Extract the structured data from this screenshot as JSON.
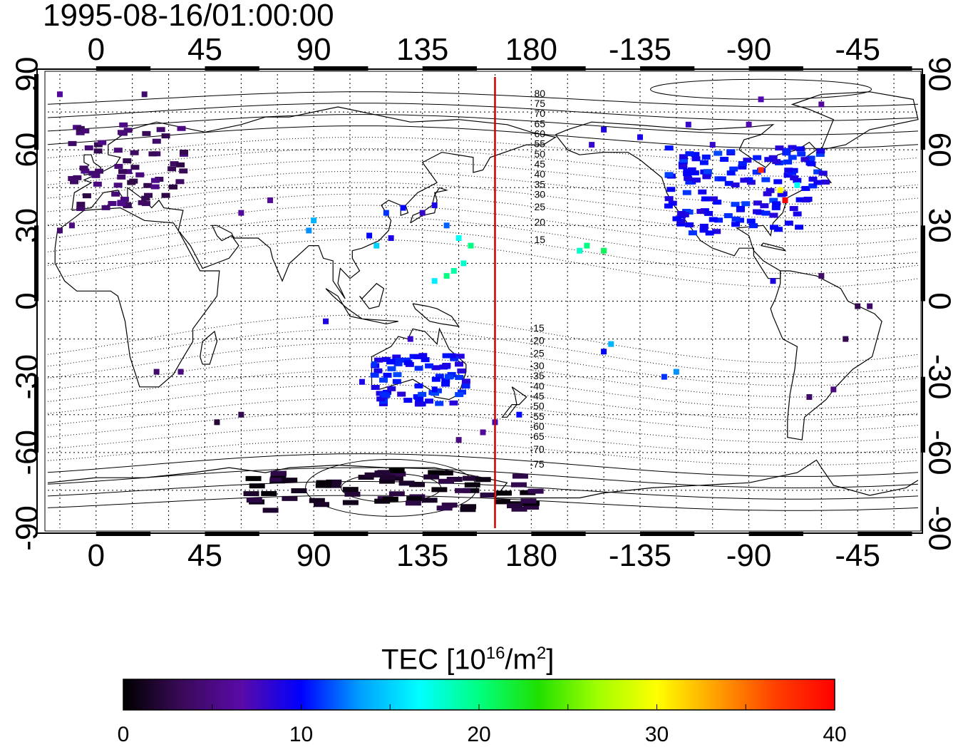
{
  "title": "1995-08-16/01:00:00",
  "map": {
    "lon_ticks": [
      0,
      45,
      90,
      135,
      180,
      225,
      270,
      315
    ],
    "lon_tick_labels": [
      "0",
      "45",
      "90",
      "135",
      "180",
      "-135",
      "-90",
      "-45"
    ],
    "lat_ticks": [
      90,
      60,
      30,
      0,
      -30,
      -60,
      -90
    ],
    "lat_tick_labels": [
      "90",
      "60",
      "30",
      "0",
      "-30",
      "-60",
      "-90"
    ],
    "lon_range": [
      -20,
      340
    ],
    "lat_range": [
      -90,
      90
    ],
    "red_line_lon": 165,
    "contour_labels_north": [
      "80",
      "75",
      "70",
      "65",
      "60",
      "55",
      "50",
      "45",
      "40",
      "35",
      "30",
      "25",
      "20",
      "15"
    ],
    "contour_labels_south": [
      "-15",
      "-20",
      "-25",
      "-30",
      "-35",
      "-40",
      "-45",
      "-50",
      "-55",
      "-60",
      "-65",
      "-70",
      "-75"
    ]
  },
  "colorbar": {
    "title_prefix": "TEC  [10",
    "title_sup1": "16",
    "title_mid": "/m",
    "title_sup2": "2",
    "title_suffix": "]",
    "min": 0,
    "max": 40,
    "tick_values": [
      0,
      10,
      20,
      30,
      40
    ],
    "tick_labels": [
      "0",
      "10",
      "20",
      "30",
      "40"
    ],
    "stops": [
      "#000000",
      "#3a0a5a",
      "#5a0aa8",
      "#0000ff",
      "#00a0ff",
      "#00ffff",
      "#00ff80",
      "#20e000",
      "#a0ff00",
      "#ffff00",
      "#ffa000",
      "#ff4000",
      "#ff0000"
    ]
  },
  "tec_regions": [
    {
      "name": "europe",
      "lon": [
        -12,
        35
      ],
      "lat": [
        37,
        72
      ],
      "value": 4
    },
    {
      "name": "usa",
      "lon": [
        235,
        295
      ],
      "lat": [
        28,
        50
      ],
      "value": 10
    },
    {
      "name": "canada",
      "lon": [
        235,
        300
      ],
      "lat": [
        48,
        62
      ],
      "value": 10
    },
    {
      "name": "antarctica",
      "lon": [
        60,
        180
      ],
      "lat": [
        -82,
        -66
      ],
      "value": 1.5
    },
    {
      "name": "australia",
      "lon": [
        113,
        152
      ],
      "lat": [
        -40,
        -20
      ],
      "value": 10
    }
  ],
  "tec_points": [
    {
      "lon": 25,
      "lat": -28,
      "value": 4
    },
    {
      "lon": 35,
      "lat": -28,
      "value": 5
    },
    {
      "lon": -15,
      "lat": 28,
      "value": 4
    },
    {
      "lon": -10,
      "lat": 30,
      "value": 5
    },
    {
      "lon": 60,
      "lat": 35,
      "value": 6
    },
    {
      "lon": 72,
      "lat": 40,
      "value": 6
    },
    {
      "lon": 88,
      "lat": 28,
      "value": 13
    },
    {
      "lon": 90,
      "lat": 32,
      "value": 14
    },
    {
      "lon": 95,
      "lat": -8,
      "value": 9
    },
    {
      "lon": 113,
      "lat": 26,
      "value": 10
    },
    {
      "lon": 116,
      "lat": 22,
      "value": 15
    },
    {
      "lon": 120,
      "lat": 35,
      "value": 11
    },
    {
      "lon": 122,
      "lat": 25,
      "value": 9
    },
    {
      "lon": 127,
      "lat": 37,
      "value": 10
    },
    {
      "lon": 135,
      "lat": 35,
      "value": 8
    },
    {
      "lon": 140,
      "lat": 38,
      "value": 9
    },
    {
      "lon": 145,
      "lat": 30,
      "value": 12
    },
    {
      "lon": 150,
      "lat": 25,
      "value": 17
    },
    {
      "lon": 155,
      "lat": 22,
      "value": 20
    },
    {
      "lon": 152,
      "lat": 15,
      "value": 18
    },
    {
      "lon": 148,
      "lat": 12,
      "value": 19
    },
    {
      "lon": 145,
      "lat": 10,
      "value": 20
    },
    {
      "lon": 140,
      "lat": 8,
      "value": 16
    },
    {
      "lon": 203,
      "lat": 22,
      "value": 20
    },
    {
      "lon": 200,
      "lat": 20,
      "value": 18
    },
    {
      "lon": 210,
      "lat": 20,
      "value": 21
    },
    {
      "lon": 213,
      "lat": -17,
      "value": 14
    },
    {
      "lon": 210,
      "lat": -20,
      "value": 10
    },
    {
      "lon": 235,
      "lat": -30,
      "value": 11
    },
    {
      "lon": 240,
      "lat": -28,
      "value": 13
    },
    {
      "lon": 275,
      "lat": 52,
      "value": 38
    },
    {
      "lon": 283,
      "lat": 44,
      "value": 30
    },
    {
      "lon": 290,
      "lat": 46,
      "value": 17
    },
    {
      "lon": 285,
      "lat": 40,
      "value": 40
    },
    {
      "lon": 300,
      "lat": 10,
      "value": 4
    },
    {
      "lon": 310,
      "lat": -15,
      "value": 3
    },
    {
      "lon": 320,
      "lat": -2,
      "value": 4
    },
    {
      "lon": 305,
      "lat": -35,
      "value": 5
    },
    {
      "lon": 295,
      "lat": -38,
      "value": 4
    },
    {
      "lon": 60,
      "lat": -45,
      "value": 3
    },
    {
      "lon": 50,
      "lat": -48,
      "value": 2
    },
    {
      "lon": 165,
      "lat": -48,
      "value": 8
    },
    {
      "lon": 175,
      "lat": -45,
      "value": 10
    },
    {
      "lon": 160,
      "lat": -52,
      "value": 6
    },
    {
      "lon": 150,
      "lat": -55,
      "value": 5
    },
    {
      "lon": 110,
      "lat": -32,
      "value": 9
    },
    {
      "lon": 115,
      "lat": -25,
      "value": 11
    },
    {
      "lon": 130,
      "lat": -15,
      "value": 8
    },
    {
      "lon": 140,
      "lat": -35,
      "value": 10
    },
    {
      "lon": -15,
      "lat": 82,
      "value": 6
    },
    {
      "lon": 20,
      "lat": 82,
      "value": 4
    },
    {
      "lon": 275,
      "lat": 80,
      "value": 7
    },
    {
      "lon": 300,
      "lat": 78,
      "value": 6
    },
    {
      "lon": 245,
      "lat": 70,
      "value": 8
    },
    {
      "lon": 210,
      "lat": 68,
      "value": 9
    },
    {
      "lon": 205,
      "lat": 62,
      "value": 8
    },
    {
      "lon": 270,
      "lat": 70,
      "value": 7
    },
    {
      "lon": 225,
      "lat": 65,
      "value": 9
    },
    {
      "lon": 255,
      "lat": 62,
      "value": 8
    },
    {
      "lon": 315,
      "lat": -2,
      "value": 3
    },
    {
      "lon": 280,
      "lat": 8,
      "value": 9
    }
  ]
}
